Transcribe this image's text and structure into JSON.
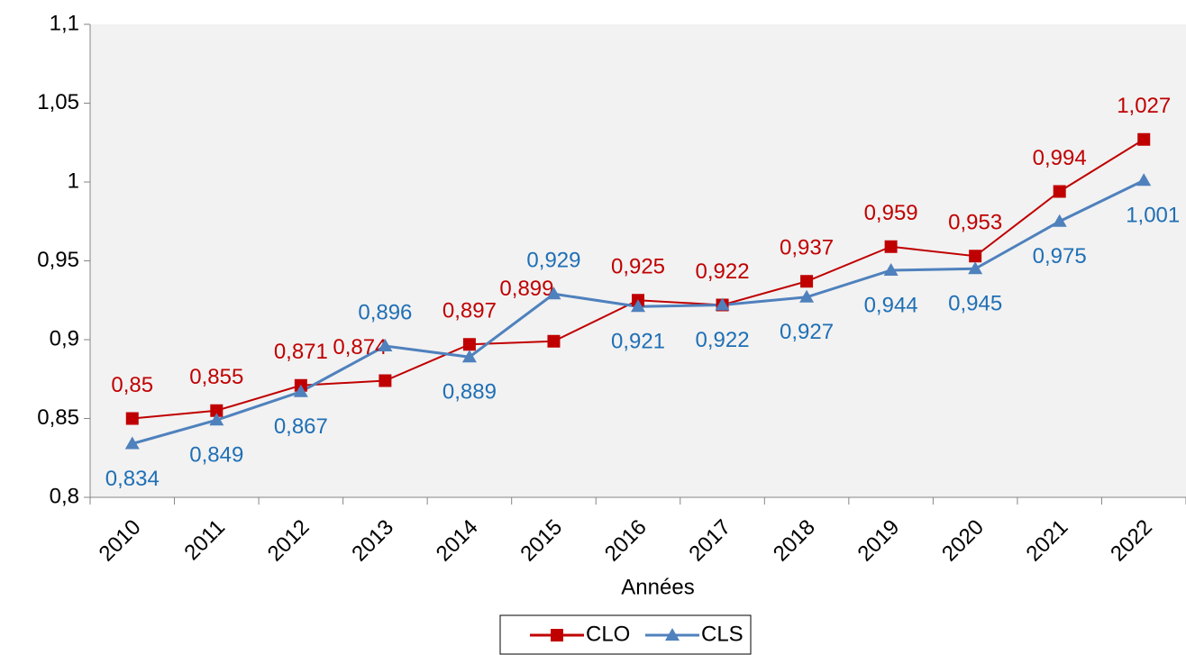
{
  "chart_data": {
    "type": "line",
    "x_label": "Années",
    "categories": [
      "2010",
      "2011",
      "2012",
      "2013",
      "2014",
      "2015",
      "2016",
      "2017",
      "2018",
      "2019",
      "2020",
      "2021",
      "2022"
    ],
    "series": [
      {
        "name": "CLO",
        "color": "#c00000",
        "marker": "square",
        "values": [
          0.85,
          0.855,
          0.871,
          0.874,
          0.897,
          0.899,
          0.925,
          0.922,
          0.937,
          0.959,
          0.953,
          0.994,
          1.027
        ],
        "value_labels": [
          "0,85",
          "0,855",
          "0,871",
          "0,874",
          "0,897",
          "0,899",
          "0,925",
          "0,922",
          "0,937",
          "0,959",
          "0,953",
          "0,994",
          "1,027"
        ]
      },
      {
        "name": "CLS",
        "color": "#4f81bd",
        "label_color": "#1f6fb5",
        "marker": "triangle",
        "values": [
          0.834,
          0.849,
          0.867,
          0.896,
          0.889,
          0.929,
          0.921,
          0.922,
          0.927,
          0.944,
          0.945,
          0.975,
          1.001
        ],
        "value_labels": [
          "0,834",
          "0,849",
          "0,867",
          "0,896",
          "0,889",
          "0,929",
          "0,921",
          "0,922",
          "0,927",
          "0,944",
          "0,945",
          "0,975",
          "1,001"
        ]
      }
    ],
    "ylim": [
      0.8,
      1.1
    ],
    "yticks": [
      {
        "value": 0.8,
        "label": "0,8"
      },
      {
        "value": 0.85,
        "label": "0,85"
      },
      {
        "value": 0.9,
        "label": "0,9"
      },
      {
        "value": 0.95,
        "label": "0,95"
      },
      {
        "value": 1,
        "label": "1"
      },
      {
        "value": 1.05,
        "label": "1,05"
      },
      {
        "value": 1.1,
        "label": "1,1"
      }
    ],
    "grid": false,
    "legend": "bottom"
  }
}
